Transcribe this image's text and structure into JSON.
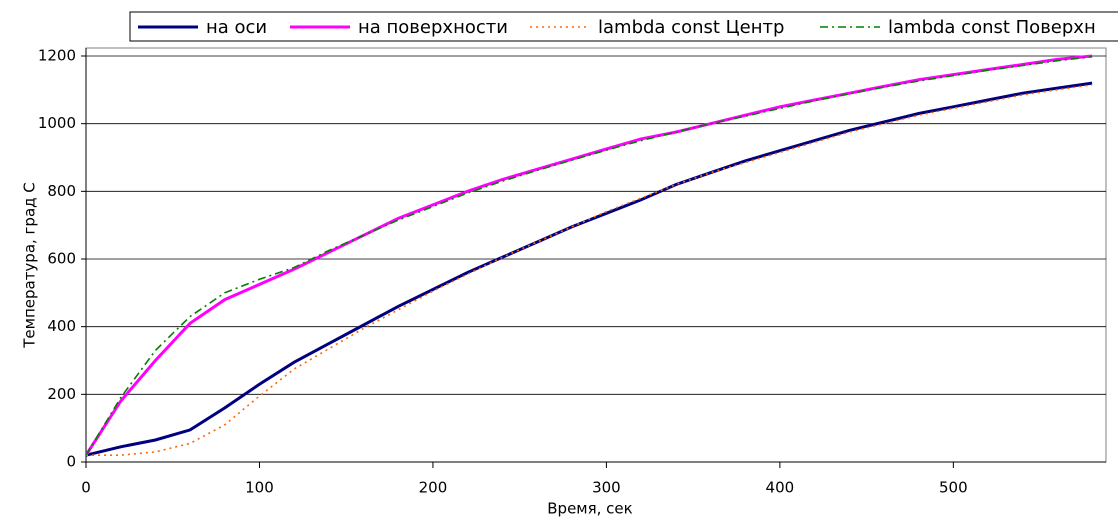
{
  "chart_data": {
    "type": "line",
    "xlabel": "Время, сек",
    "ylabel": "Температура, град С",
    "x": [
      0,
      20,
      40,
      60,
      80,
      100,
      120,
      140,
      160,
      180,
      200,
      220,
      240,
      260,
      280,
      300,
      320,
      340,
      360,
      380,
      400,
      420,
      440,
      460,
      480,
      500,
      520,
      540,
      560,
      580
    ],
    "series": [
      {
        "name": "на оси",
        "color": "#000080",
        "style": "solid",
        "values": [
          20,
          45,
          65,
          95,
          160,
          230,
          295,
          350,
          405,
          460,
          510,
          560,
          605,
          650,
          695,
          735,
          775,
          820,
          855,
          890,
          920,
          950,
          980,
          1005,
          1030,
          1050,
          1070,
          1090,
          1105,
          1120
        ]
      },
      {
        "name": "на поверхности",
        "color": "#ff00ff",
        "style": "solid",
        "values": [
          20,
          180,
          300,
          410,
          480,
          525,
          570,
          620,
          670,
          720,
          760,
          800,
          835,
          865,
          895,
          925,
          955,
          975,
          1000,
          1025,
          1050,
          1070,
          1090,
          1110,
          1130,
          1145,
          1160,
          1175,
          1190,
          1200
        ]
      },
      {
        "name": "lambda const Центр",
        "color": "#ff6600",
        "style": "dotted",
        "values": [
          20,
          20,
          30,
          55,
          110,
          195,
          275,
          335,
          395,
          450,
          505,
          555,
          605,
          650,
          695,
          740,
          780,
          820,
          855,
          885,
          915,
          945,
          975,
          1000,
          1025,
          1045,
          1065,
          1085,
          1100,
          1115
        ]
      },
      {
        "name": "lambda const Поверхн",
        "color": "#008000",
        "style": "dashdot",
        "values": [
          20,
          190,
          330,
          430,
          500,
          540,
          575,
          625,
          670,
          715,
          755,
          795,
          830,
          862,
          892,
          922,
          950,
          975,
          1000,
          1022,
          1045,
          1068,
          1088,
          1108,
          1126,
          1142,
          1158,
          1172,
          1186,
          1198
        ]
      }
    ],
    "xlim": [
      0,
      588
    ],
    "ylim": [
      0,
      1200
    ],
    "xticks": [
      0,
      100,
      200,
      300,
      400,
      500
    ],
    "yticks": [
      0,
      200,
      400,
      600,
      800,
      1000,
      1200
    ],
    "grid": true,
    "legend": "top"
  }
}
